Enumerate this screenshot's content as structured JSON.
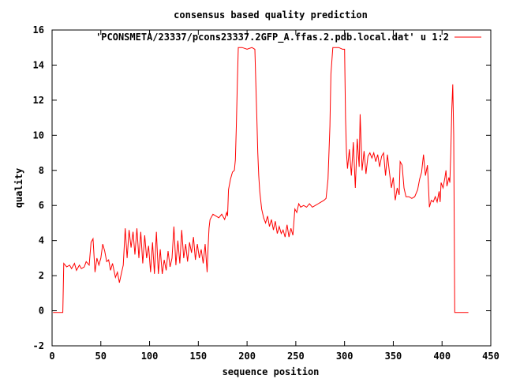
{
  "chart_data": {
    "type": "line",
    "title": "consensus based quality prediction",
    "xlabel": "sequence position",
    "ylabel": "quality",
    "xlim": [
      0,
      450
    ],
    "ylim": [
      -2,
      16
    ],
    "xticks": [
      "0",
      "50",
      "100",
      "150",
      "200",
      "250",
      "300",
      "350",
      "400",
      "450"
    ],
    "yticks": [
      "-2",
      "0",
      "2",
      "4",
      "6",
      "8",
      "10",
      "12",
      "14",
      "16"
    ],
    "legend": "top-right",
    "grid": false,
    "series": [
      {
        "name": "'PCONSMETA/23337/pcons23337.2GFP_A.ffas.2.pdb.local.dat' u 1:2",
        "color": "#ff0000",
        "points": [
          [
            1,
            -0.1
          ],
          [
            11,
            -0.1
          ],
          [
            12,
            2.7
          ],
          [
            15,
            2.5
          ],
          [
            18,
            2.6
          ],
          [
            20,
            2.4
          ],
          [
            23,
            2.7
          ],
          [
            25,
            2.3
          ],
          [
            28,
            2.6
          ],
          [
            30,
            2.4
          ],
          [
            33,
            2.5
          ],
          [
            35,
            2.8
          ],
          [
            38,
            2.6
          ],
          [
            40,
            3.9
          ],
          [
            42,
            4.1
          ],
          [
            44,
            2.2
          ],
          [
            46,
            3.0
          ],
          [
            48,
            2.6
          ],
          [
            50,
            3.0
          ],
          [
            52,
            3.8
          ],
          [
            54,
            3.4
          ],
          [
            56,
            2.8
          ],
          [
            58,
            2.9
          ],
          [
            60,
            2.3
          ],
          [
            62,
            2.7
          ],
          [
            65,
            1.9
          ],
          [
            67,
            2.2
          ],
          [
            69,
            1.6
          ],
          [
            71,
            2.1
          ],
          [
            73,
            2.6
          ],
          [
            75,
            4.7
          ],
          [
            77,
            3.0
          ],
          [
            79,
            4.6
          ],
          [
            81,
            3.6
          ],
          [
            83,
            4.5
          ],
          [
            85,
            3.2
          ],
          [
            87,
            4.7
          ],
          [
            89,
            3.0
          ],
          [
            91,
            4.5
          ],
          [
            93,
            2.7
          ],
          [
            95,
            4.3
          ],
          [
            97,
            3.0
          ],
          [
            99,
            3.7
          ],
          [
            101,
            2.2
          ],
          [
            103,
            3.9
          ],
          [
            105,
            2.1
          ],
          [
            107,
            4.5
          ],
          [
            109,
            2.1
          ],
          [
            111,
            3.5
          ],
          [
            113,
            2.1
          ],
          [
            115,
            2.9
          ],
          [
            117,
            2.3
          ],
          [
            119,
            3.4
          ],
          [
            121,
            2.5
          ],
          [
            123,
            3.0
          ],
          [
            125,
            4.8
          ],
          [
            127,
            2.6
          ],
          [
            129,
            4.0
          ],
          [
            131,
            2.7
          ],
          [
            133,
            4.6
          ],
          [
            135,
            3.0
          ],
          [
            137,
            3.8
          ],
          [
            139,
            2.8
          ],
          [
            141,
            3.9
          ],
          [
            143,
            3.3
          ],
          [
            145,
            4.2
          ],
          [
            147,
            2.9
          ],
          [
            149,
            3.8
          ],
          [
            151,
            3.0
          ],
          [
            153,
            3.5
          ],
          [
            155,
            2.7
          ],
          [
            157,
            3.8
          ],
          [
            159,
            2.2
          ],
          [
            160,
            3.6
          ],
          [
            161,
            4.7
          ],
          [
            162,
            5.2
          ],
          [
            165,
            5.5
          ],
          [
            168,
            5.4
          ],
          [
            171,
            5.3
          ],
          [
            174,
            5.5
          ],
          [
            177,
            5.2
          ],
          [
            179,
            5.6
          ],
          [
            180,
            5.4
          ],
          [
            181,
            6.9
          ],
          [
            183,
            7.5
          ],
          [
            185,
            7.9
          ],
          [
            187,
            8.0
          ],
          [
            188,
            8.6
          ],
          [
            189,
            10.5
          ],
          [
            190,
            13.0
          ],
          [
            191,
            15.0
          ],
          [
            195,
            15.0
          ],
          [
            200,
            14.9
          ],
          [
            205,
            15.0
          ],
          [
            208,
            14.9
          ],
          [
            209,
            13.0
          ],
          [
            210,
            11.0
          ],
          [
            211,
            9.0
          ],
          [
            212,
            7.7
          ],
          [
            213,
            6.8
          ],
          [
            215,
            5.8
          ],
          [
            217,
            5.3
          ],
          [
            219,
            5.0
          ],
          [
            221,
            5.4
          ],
          [
            223,
            4.8
          ],
          [
            225,
            5.2
          ],
          [
            227,
            4.6
          ],
          [
            229,
            5.1
          ],
          [
            231,
            4.4
          ],
          [
            233,
            4.8
          ],
          [
            235,
            4.4
          ],
          [
            237,
            4.6
          ],
          [
            239,
            4.2
          ],
          [
            241,
            4.9
          ],
          [
            243,
            4.2
          ],
          [
            245,
            4.7
          ],
          [
            247,
            4.3
          ],
          [
            249,
            5.8
          ],
          [
            251,
            5.6
          ],
          [
            253,
            6.1
          ],
          [
            255,
            5.9
          ],
          [
            258,
            6.0
          ],
          [
            261,
            5.9
          ],
          [
            264,
            6.1
          ],
          [
            267,
            5.9
          ],
          [
            270,
            6.0
          ],
          [
            273,
            6.1
          ],
          [
            276,
            6.2
          ],
          [
            279,
            6.3
          ],
          [
            281,
            6.4
          ],
          [
            283,
            7.5
          ],
          [
            285,
            10.5
          ],
          [
            286,
            13.5
          ],
          [
            288,
            15.0
          ],
          [
            294,
            15.0
          ],
          [
            298,
            14.9
          ],
          [
            300,
            14.9
          ],
          [
            301,
            11.0
          ],
          [
            302,
            9.0
          ],
          [
            303,
            8.1
          ],
          [
            305,
            9.2
          ],
          [
            307,
            7.7
          ],
          [
            309,
            9.6
          ],
          [
            311,
            7.0
          ],
          [
            313,
            9.8
          ],
          [
            315,
            8.2
          ],
          [
            316,
            11.2
          ],
          [
            318,
            8.0
          ],
          [
            320,
            9.1
          ],
          [
            322,
            7.8
          ],
          [
            324,
            8.8
          ],
          [
            326,
            9.0
          ],
          [
            328,
            8.7
          ],
          [
            330,
            9.0
          ],
          [
            332,
            8.5
          ],
          [
            334,
            8.9
          ],
          [
            336,
            8.2
          ],
          [
            338,
            8.8
          ],
          [
            340,
            9.0
          ],
          [
            342,
            7.7
          ],
          [
            344,
            8.9
          ],
          [
            346,
            7.9
          ],
          [
            348,
            7.0
          ],
          [
            350,
            7.6
          ],
          [
            352,
            6.3
          ],
          [
            354,
            7.0
          ],
          [
            356,
            6.6
          ],
          [
            357,
            8.5
          ],
          [
            359,
            8.3
          ],
          [
            361,
            7.0
          ],
          [
            363,
            6.5
          ],
          [
            366,
            6.5
          ],
          [
            369,
            6.4
          ],
          [
            372,
            6.5
          ],
          [
            375,
            6.9
          ],
          [
            377,
            7.5
          ],
          [
            379,
            7.9
          ],
          [
            381,
            8.9
          ],
          [
            383,
            7.7
          ],
          [
            385,
            8.3
          ],
          [
            386,
            7.2
          ],
          [
            387,
            5.9
          ],
          [
            389,
            6.3
          ],
          [
            391,
            6.2
          ],
          [
            393,
            6.5
          ],
          [
            395,
            6.2
          ],
          [
            397,
            6.8
          ],
          [
            398,
            6.2
          ],
          [
            399,
            7.3
          ],
          [
            401,
            7.0
          ],
          [
            403,
            7.6
          ],
          [
            404,
            8.0
          ],
          [
            405,
            7.1
          ],
          [
            407,
            7.6
          ],
          [
            408,
            7.3
          ],
          [
            409,
            9.0
          ],
          [
            410,
            11.5
          ],
          [
            411,
            12.9
          ],
          [
            412,
            10.0
          ],
          [
            413,
            -0.1
          ],
          [
            427,
            -0.1
          ]
        ]
      }
    ]
  }
}
